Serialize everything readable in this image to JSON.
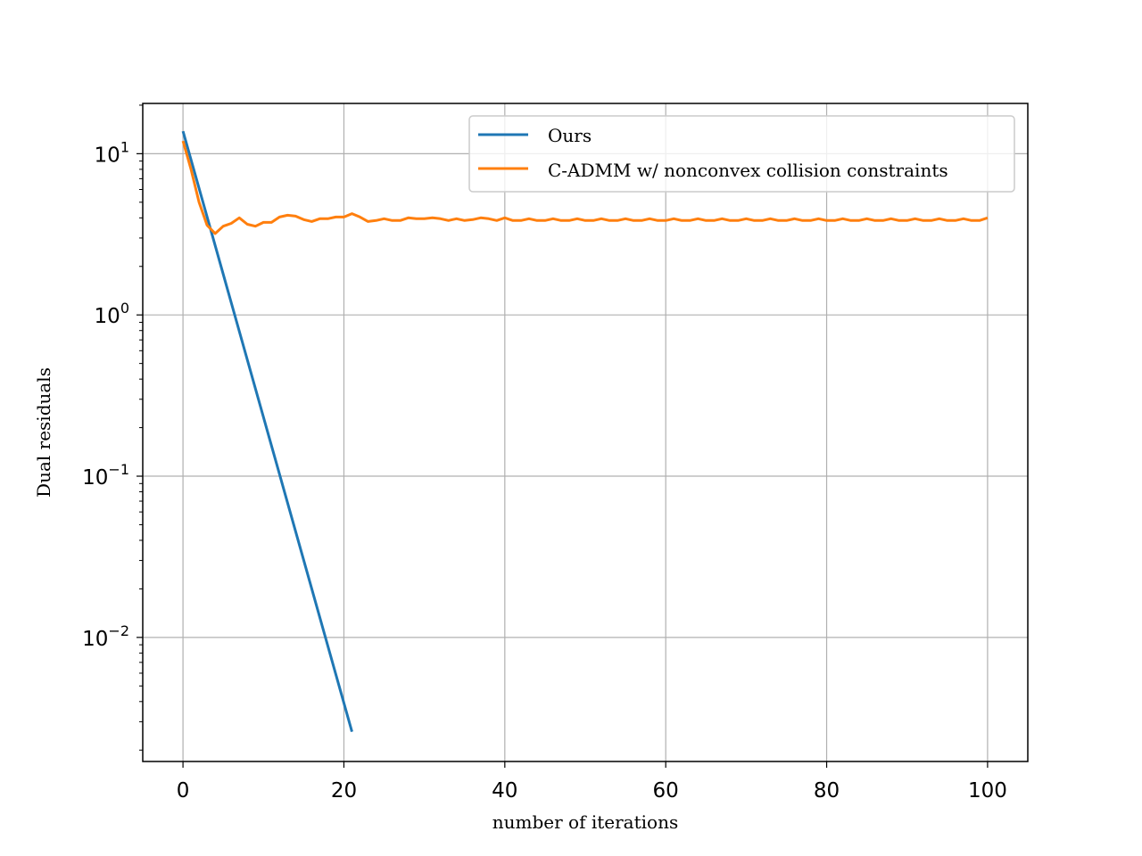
{
  "chart_data": {
    "type": "line",
    "xlabel": "number of iterations",
    "ylabel": "Dual residuals",
    "xlim": [
      -5,
      105
    ],
    "ylim": [
      0.0017,
      20.5
    ],
    "yscale": "log",
    "grid": true,
    "legend_position": "top-right",
    "x_ticks": [
      0,
      20,
      40,
      60,
      80,
      100
    ],
    "y_ticks": [
      0.01,
      0.1,
      1,
      10
    ],
    "y_tick_labels": [
      {
        "base": "10",
        "exp": "−2"
      },
      {
        "base": "10",
        "exp": "−1"
      },
      {
        "base": "10",
        "exp": "0"
      },
      {
        "base": "10",
        "exp": "1"
      }
    ],
    "series": [
      {
        "name": "Ours",
        "color": "#1f77b4",
        "x": [
          0,
          21
        ],
        "y": [
          13.8,
          0.0026
        ]
      },
      {
        "name": "C-ADMM w/ nonconvex collision constraints",
        "color": "#ff7f0e",
        "x": [
          0,
          1,
          2,
          3,
          4,
          5,
          6,
          7,
          8,
          9,
          10,
          11,
          12,
          13,
          14,
          15,
          16,
          17,
          18,
          19,
          20,
          21,
          22,
          23,
          24,
          25,
          26,
          27,
          28,
          29,
          30,
          31,
          32,
          33,
          34,
          35,
          36,
          37,
          38,
          39,
          40,
          41,
          42,
          43,
          44,
          45,
          46,
          47,
          48,
          49,
          50,
          51,
          52,
          53,
          54,
          55,
          56,
          57,
          58,
          59,
          60,
          61,
          62,
          63,
          64,
          65,
          66,
          67,
          68,
          69,
          70,
          71,
          72,
          73,
          74,
          75,
          76,
          77,
          78,
          79,
          80,
          81,
          82,
          83,
          84,
          85,
          86,
          87,
          88,
          89,
          90,
          91,
          92,
          93,
          94,
          95,
          96,
          97,
          98,
          99,
          100
        ],
        "y": [
          12.0,
          8.0,
          5.0,
          3.6,
          3.2,
          3.55,
          3.7,
          4.0,
          3.65,
          3.55,
          3.75,
          3.75,
          4.05,
          4.15,
          4.1,
          3.9,
          3.8,
          3.95,
          3.95,
          4.05,
          4.05,
          4.25,
          4.05,
          3.8,
          3.85,
          3.95,
          3.85,
          3.85,
          4.0,
          3.95,
          3.95,
          4.0,
          3.95,
          3.85,
          3.95,
          3.85,
          3.9,
          4.0,
          3.95,
          3.85,
          4.0,
          3.85,
          3.85,
          3.95,
          3.85,
          3.85,
          3.95,
          3.85,
          3.85,
          3.95,
          3.85,
          3.85,
          3.95,
          3.85,
          3.85,
          3.95,
          3.85,
          3.85,
          3.95,
          3.85,
          3.85,
          3.95,
          3.85,
          3.85,
          3.95,
          3.85,
          3.85,
          3.95,
          3.85,
          3.85,
          3.95,
          3.85,
          3.85,
          3.95,
          3.85,
          3.85,
          3.95,
          3.85,
          3.85,
          3.95,
          3.85,
          3.85,
          3.95,
          3.85,
          3.85,
          3.95,
          3.85,
          3.85,
          3.95,
          3.85,
          3.85,
          3.95,
          3.85,
          3.85,
          3.95,
          3.85,
          3.85,
          3.95,
          3.85,
          3.85,
          4.0
        ]
      }
    ]
  }
}
